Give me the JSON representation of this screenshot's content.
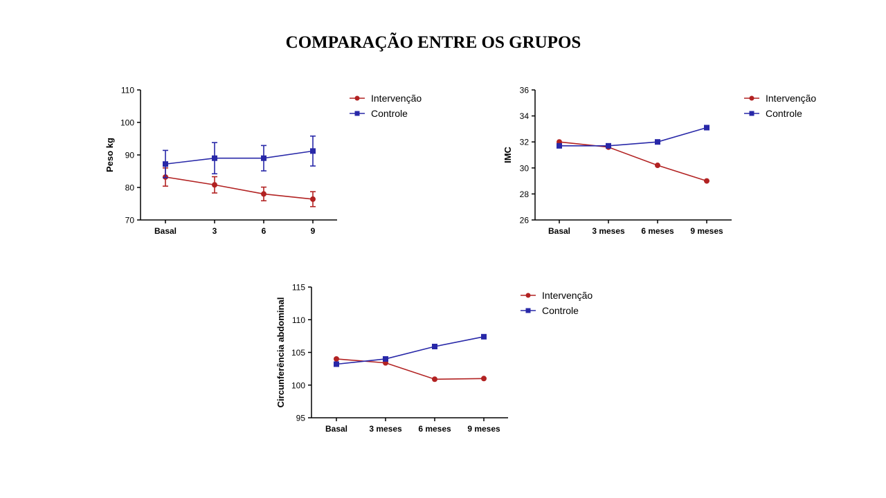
{
  "page": {
    "title": "COMPARAÇÃO ENTRE OS GRUPOS"
  },
  "colors": {
    "intervencao": "#b22222",
    "controle": "#2828a8",
    "axis": "#000000"
  },
  "chart_data": [
    {
      "type": "line",
      "ylabel": "Peso kg",
      "categories": [
        "Basal",
        "3",
        "6",
        "9"
      ],
      "ylim": [
        70,
        110
      ],
      "yticks": [
        70,
        80,
        90,
        100,
        110
      ],
      "legend_position": "top-right",
      "error_bars": true,
      "series": [
        {
          "name": "Intervenção",
          "marker": "circle",
          "values": [
            83.2,
            80.8,
            78.0,
            76.4
          ],
          "error": [
            2.8,
            2.5,
            2.1,
            2.3
          ]
        },
        {
          "name": "Controle",
          "marker": "square",
          "values": [
            87.2,
            89.0,
            89.0,
            91.2
          ],
          "error": [
            4.2,
            4.8,
            3.9,
            4.6
          ]
        }
      ]
    },
    {
      "type": "line",
      "ylabel": "IMC",
      "categories": [
        "Basal",
        "3 meses",
        "6 meses",
        "9 meses"
      ],
      "ylim": [
        26,
        36
      ],
      "yticks": [
        26,
        28,
        30,
        32,
        34,
        36
      ],
      "legend_position": "top-right",
      "series": [
        {
          "name": "Intervenção",
          "marker": "circle",
          "values": [
            32.0,
            31.6,
            30.2,
            29.0
          ]
        },
        {
          "name": "Controle",
          "marker": "square",
          "values": [
            31.7,
            31.7,
            32.0,
            33.1
          ]
        }
      ]
    },
    {
      "type": "line",
      "ylabel": "Circunferência abdominal",
      "categories": [
        "Basal",
        "3 meses",
        "6 meses",
        "9 meses"
      ],
      "ylim": [
        95,
        115
      ],
      "yticks": [
        95,
        100,
        105,
        110,
        115
      ],
      "legend_position": "top-right",
      "series": [
        {
          "name": "Intervenção",
          "marker": "circle",
          "values": [
            104.0,
            103.4,
            100.9,
            101.0
          ]
        },
        {
          "name": "Controle",
          "marker": "square",
          "values": [
            103.2,
            104.0,
            105.9,
            107.4
          ]
        }
      ]
    }
  ]
}
